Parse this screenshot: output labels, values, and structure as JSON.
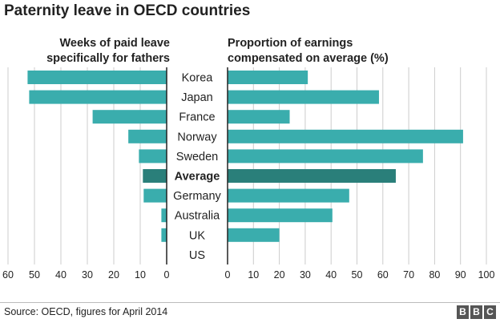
{
  "colors": {
    "bar": "#3aadad",
    "average_bar": "#2a7f7a",
    "axis": "#222222",
    "grid": "#cccccc"
  },
  "chart_data": {
    "type": "bar",
    "title": "Paternity leave in OECD countries",
    "categories": [
      "Korea",
      "Japan",
      "France",
      "Norway",
      "Sweden",
      "Average",
      "Germany",
      "Australia",
      "UK",
      "US"
    ],
    "highlight": "Average",
    "panels": [
      {
        "name": "weeks",
        "label_line1": "Weeks of paid leave",
        "label_line2": "specifically for fathers",
        "direction": "left",
        "xlim": [
          0,
          60
        ],
        "ticks": [
          0,
          10,
          20,
          30,
          40,
          50,
          60
        ],
        "tick_labels": [
          "0",
          "10",
          "20",
          "30",
          "40",
          "50",
          "60"
        ],
        "values": [
          52.6,
          52,
          28,
          14.5,
          10.5,
          9,
          8.7,
          2,
          2,
          0
        ]
      },
      {
        "name": "proportion",
        "label_line1": "Proportion of earnings",
        "label_line2": "compensated on average (%)",
        "direction": "right",
        "xlim": [
          0,
          100
        ],
        "ticks": [
          0,
          10,
          20,
          30,
          40,
          50,
          60,
          70,
          80,
          90,
          100
        ],
        "tick_labels": [
          "0",
          "10",
          "20",
          "30",
          "40",
          "50",
          "60",
          "70",
          "80",
          "90",
          "100"
        ],
        "values": [
          31,
          58.5,
          24,
          91,
          75.5,
          65,
          47,
          40.5,
          20,
          0
        ]
      }
    ]
  },
  "footer": {
    "source": "Source: OECD, figures for April 2014",
    "logo_letters": [
      "B",
      "B",
      "C"
    ]
  }
}
